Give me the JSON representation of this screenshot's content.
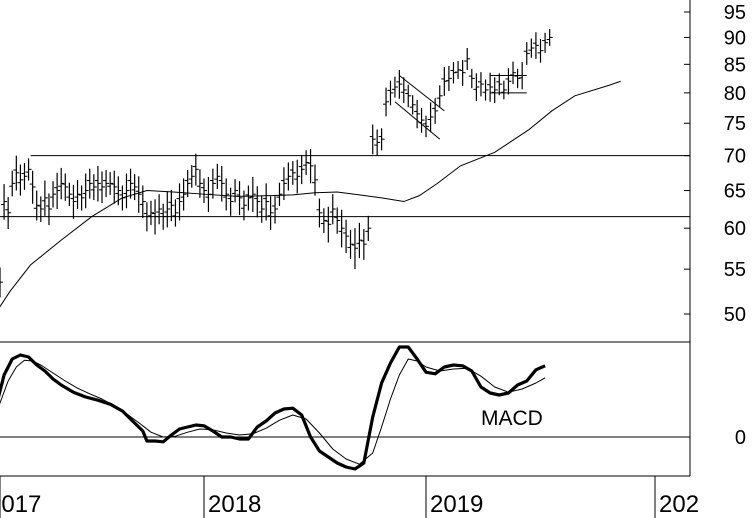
{
  "chart_data": [
    {
      "type": "ohlc",
      "title": "",
      "x_ticks": [
        "2017",
        "2018",
        "2019",
        "202"
      ],
      "y_ticks": [
        95,
        90,
        85,
        80,
        75,
        70,
        65,
        60,
        55,
        50
      ],
      "ylim": [
        46,
        97
      ],
      "grid": false,
      "legend": "none",
      "horizontal_lines": [
        70,
        61.5
      ],
      "moving_average": [
        [
          2016.92,
          49.5
        ],
        [
          2016.97,
          49.8
        ],
        [
          2017.05,
          52.5
        ],
        [
          2017.15,
          55.5
        ],
        [
          2017.3,
          58.5
        ],
        [
          2017.45,
          61.5
        ],
        [
          2017.6,
          64.0
        ],
        [
          2017.72,
          65.0
        ],
        [
          2017.85,
          64.8
        ],
        [
          2018.0,
          64.5
        ],
        [
          2018.15,
          64.2
        ],
        [
          2018.3,
          64.3
        ],
        [
          2018.4,
          64.4
        ],
        [
          2018.5,
          64.7
        ],
        [
          2018.6,
          64.8
        ],
        [
          2018.7,
          64.4
        ],
        [
          2018.8,
          64.0
        ],
        [
          2018.9,
          63.5
        ],
        [
          2018.97,
          64.3
        ],
        [
          2019.05,
          66.0
        ],
        [
          2019.15,
          68.5
        ],
        [
          2019.3,
          70.5
        ],
        [
          2019.45,
          74.0
        ],
        [
          2019.55,
          77.0
        ],
        [
          2019.65,
          79.5
        ],
        [
          2019.8,
          81.3
        ],
        [
          2019.85,
          82.0
        ]
      ],
      "price": [
        [
          2016.93,
          54.0
        ],
        [
          2016.95,
          52.0
        ],
        [
          2016.98,
          52.5
        ],
        [
          2017.0,
          53.5
        ],
        [
          2017.02,
          63.5
        ],
        [
          2017.04,
          62.0
        ],
        [
          2017.06,
          66.0
        ],
        [
          2017.08,
          67.5
        ],
        [
          2017.1,
          66.5
        ],
        [
          2017.12,
          67.0
        ],
        [
          2017.14,
          68.0
        ],
        [
          2017.16,
          65.5
        ],
        [
          2017.18,
          63.0
        ],
        [
          2017.2,
          62.5
        ],
        [
          2017.22,
          64.0
        ],
        [
          2017.24,
          62.5
        ],
        [
          2017.26,
          64.5
        ],
        [
          2017.28,
          65.0
        ],
        [
          2017.3,
          66.0
        ],
        [
          2017.32,
          65.5
        ],
        [
          2017.34,
          64.5
        ],
        [
          2017.36,
          63.5
        ],
        [
          2017.38,
          64.5
        ],
        [
          2017.4,
          64.0
        ],
        [
          2017.42,
          65.0
        ],
        [
          2017.44,
          66.0
        ],
        [
          2017.46,
          65.5
        ],
        [
          2017.48,
          66.0
        ],
        [
          2017.5,
          65.5
        ],
        [
          2017.52,
          66.0
        ],
        [
          2017.54,
          66.0
        ],
        [
          2017.56,
          65.5
        ],
        [
          2017.58,
          65.0
        ],
        [
          2017.6,
          64.0
        ],
        [
          2017.62,
          65.0
        ],
        [
          2017.64,
          66.0
        ],
        [
          2017.66,
          65.5
        ],
        [
          2017.68,
          64.5
        ],
        [
          2017.7,
          63.5
        ],
        [
          2017.72,
          61.5
        ],
        [
          2017.74,
          62.0
        ],
        [
          2017.76,
          61.5
        ],
        [
          2017.78,
          62.5
        ],
        [
          2017.8,
          61.5
        ],
        [
          2017.82,
          62.5
        ],
        [
          2017.84,
          63.0
        ],
        [
          2017.86,
          62.0
        ],
        [
          2017.88,
          63.5
        ],
        [
          2017.9,
          64.5
        ],
        [
          2017.92,
          66.0
        ],
        [
          2017.94,
          67.0
        ],
        [
          2017.96,
          68.0
        ],
        [
          2017.98,
          66.0
        ],
        [
          2018.0,
          65.0
        ],
        [
          2018.02,
          64.5
        ],
        [
          2018.04,
          66.0
        ],
        [
          2018.06,
          67.0
        ],
        [
          2018.08,
          66.0
        ],
        [
          2018.1,
          64.5
        ],
        [
          2018.12,
          63.5
        ],
        [
          2018.14,
          65.0
        ],
        [
          2018.16,
          64.0
        ],
        [
          2018.18,
          63.0
        ],
        [
          2018.2,
          64.0
        ],
        [
          2018.22,
          64.5
        ],
        [
          2018.24,
          63.5
        ],
        [
          2018.26,
          62.5
        ],
        [
          2018.28,
          63.5
        ],
        [
          2018.3,
          62.0
        ],
        [
          2018.32,
          62.5
        ],
        [
          2018.34,
          64.5
        ],
        [
          2018.36,
          66.0
        ],
        [
          2018.38,
          67.0
        ],
        [
          2018.4,
          67.5
        ],
        [
          2018.42,
          67.0
        ],
        [
          2018.44,
          68.0
        ],
        [
          2018.46,
          69.0
        ],
        [
          2018.48,
          68.5
        ],
        [
          2018.5,
          66.5
        ],
        [
          2018.52,
          62.0
        ],
        [
          2018.54,
          61.0
        ],
        [
          2018.56,
          60.5
        ],
        [
          2018.58,
          62.5
        ],
        [
          2018.6,
          61.0
        ],
        [
          2018.62,
          60.0
        ],
        [
          2018.64,
          59.0
        ],
        [
          2018.66,
          58.0
        ],
        [
          2018.68,
          57.5
        ],
        [
          2018.7,
          58.5
        ],
        [
          2018.72,
          58.0
        ],
        [
          2018.74,
          60.0
        ],
        [
          2018.76,
          72.5
        ],
        [
          2018.78,
          72.0
        ],
        [
          2018.8,
          72.5
        ],
        [
          2018.82,
          78.5
        ],
        [
          2018.84,
          80.0
        ],
        [
          2018.86,
          81.0
        ],
        [
          2018.88,
          81.5
        ],
        [
          2018.9,
          80.5
        ],
        [
          2018.92,
          79.5
        ],
        [
          2018.94,
          78.0
        ],
        [
          2018.96,
          76.5
        ],
        [
          2018.98,
          75.5
        ],
        [
          2019.0,
          74.5
        ],
        [
          2019.02,
          76.0
        ],
        [
          2019.04,
          77.0
        ],
        [
          2019.06,
          79.5
        ],
        [
          2019.08,
          82.0
        ],
        [
          2019.1,
          82.5
        ],
        [
          2019.12,
          83.5
        ],
        [
          2019.14,
          84.0
        ],
        [
          2019.16,
          83.5
        ],
        [
          2019.18,
          86.0
        ],
        [
          2019.2,
          82.5
        ],
        [
          2019.22,
          81.0
        ],
        [
          2019.24,
          81.5
        ],
        [
          2019.26,
          80.5
        ],
        [
          2019.28,
          81.0
        ],
        [
          2019.3,
          80.5
        ],
        [
          2019.32,
          81.5
        ],
        [
          2019.34,
          80.5
        ],
        [
          2019.36,
          82.0
        ],
        [
          2019.38,
          83.5
        ],
        [
          2019.4,
          82.5
        ],
        [
          2019.42,
          83.0
        ],
        [
          2019.44,
          87.0
        ],
        [
          2019.46,
          88.0
        ],
        [
          2019.48,
          88.5
        ],
        [
          2019.5,
          87.5
        ],
        [
          2019.52,
          89.0
        ],
        [
          2019.54,
          90.0
        ]
      ],
      "annotations": [
        {
          "type": "channel",
          "from": [
            2018.86,
            78.5
          ],
          "to": [
            2019.06,
            72.5
          ]
        },
        {
          "type": "channel",
          "from": [
            2018.88,
            83.0
          ],
          "to": [
            2019.08,
            77.0
          ]
        },
        {
          "type": "rectangle",
          "from": [
            2019.28,
            83.0
          ],
          "to": [
            2019.44,
            80.0
          ]
        }
      ]
    },
    {
      "type": "line",
      "title": "",
      "label": "MACD",
      "y_ticks": [
        0
      ],
      "ylim": [
        -1.1,
        2.6
      ],
      "grid": false,
      "legend": "none",
      "zero_line": true,
      "series": [
        {
          "style": "thick",
          "points": [
            [
              2016.92,
              0.45
            ],
            [
              2016.95,
              0.45
            ],
            [
              2016.98,
              0.75
            ],
            [
              2017.02,
              1.55
            ],
            [
              2017.06,
              1.95
            ],
            [
              2017.1,
              2.05
            ],
            [
              2017.14,
              2.0
            ],
            [
              2017.18,
              1.8
            ],
            [
              2017.22,
              1.65
            ],
            [
              2017.26,
              1.45
            ],
            [
              2017.3,
              1.3
            ],
            [
              2017.36,
              1.12
            ],
            [
              2017.42,
              1.0
            ],
            [
              2017.48,
              0.92
            ],
            [
              2017.54,
              0.82
            ],
            [
              2017.6,
              0.65
            ],
            [
              2017.66,
              0.35
            ],
            [
              2017.7,
              0.15
            ],
            [
              2017.72,
              -0.1
            ],
            [
              2017.76,
              -0.1
            ],
            [
              2017.8,
              -0.12
            ],
            [
              2017.84,
              0.05
            ],
            [
              2017.88,
              0.2
            ],
            [
              2017.92,
              0.25
            ],
            [
              2017.96,
              0.3
            ],
            [
              2018.0,
              0.28
            ],
            [
              2018.04,
              0.15
            ],
            [
              2018.08,
              0.0
            ],
            [
              2018.12,
              0.0
            ],
            [
              2018.16,
              -0.05
            ],
            [
              2018.2,
              -0.05
            ],
            [
              2018.24,
              0.25
            ],
            [
              2018.28,
              0.4
            ],
            [
              2018.32,
              0.6
            ],
            [
              2018.36,
              0.7
            ],
            [
              2018.4,
              0.72
            ],
            [
              2018.44,
              0.55
            ],
            [
              2018.48,
              0.0
            ],
            [
              2018.52,
              -0.35
            ],
            [
              2018.56,
              -0.5
            ],
            [
              2018.6,
              -0.65
            ],
            [
              2018.64,
              -0.75
            ],
            [
              2018.68,
              -0.8
            ],
            [
              2018.72,
              -0.65
            ],
            [
              2018.76,
              0.5
            ],
            [
              2018.8,
              1.35
            ],
            [
              2018.84,
              1.85
            ],
            [
              2018.88,
              2.25
            ],
            [
              2018.92,
              2.25
            ],
            [
              2018.96,
              1.95
            ],
            [
              2019.0,
              1.62
            ],
            [
              2019.04,
              1.58
            ],
            [
              2019.08,
              1.75
            ],
            [
              2019.12,
              1.8
            ],
            [
              2019.16,
              1.78
            ],
            [
              2019.2,
              1.65
            ],
            [
              2019.24,
              1.25
            ],
            [
              2019.28,
              1.1
            ],
            [
              2019.32,
              1.05
            ],
            [
              2019.36,
              1.1
            ],
            [
              2019.4,
              1.3
            ],
            [
              2019.44,
              1.4
            ],
            [
              2019.48,
              1.68
            ],
            [
              2019.52,
              1.78
            ]
          ]
        },
        {
          "style": "thin",
          "points": [
            [
              2016.92,
              0.2
            ],
            [
              2016.96,
              0.4
            ],
            [
              2017.0,
              0.85
            ],
            [
              2017.04,
              1.4
            ],
            [
              2017.08,
              1.75
            ],
            [
              2017.12,
              1.92
            ],
            [
              2017.16,
              1.9
            ],
            [
              2017.2,
              1.8
            ],
            [
              2017.26,
              1.6
            ],
            [
              2017.32,
              1.4
            ],
            [
              2017.38,
              1.22
            ],
            [
              2017.44,
              1.08
            ],
            [
              2017.5,
              0.95
            ],
            [
              2017.56,
              0.78
            ],
            [
              2017.62,
              0.58
            ],
            [
              2017.68,
              0.36
            ],
            [
              2017.74,
              0.12
            ],
            [
              2017.8,
              0.0
            ],
            [
              2017.86,
              0.02
            ],
            [
              2017.92,
              0.12
            ],
            [
              2017.98,
              0.2
            ],
            [
              2018.04,
              0.18
            ],
            [
              2018.1,
              0.1
            ],
            [
              2018.16,
              0.05
            ],
            [
              2018.22,
              0.08
            ],
            [
              2018.28,
              0.22
            ],
            [
              2018.34,
              0.42
            ],
            [
              2018.4,
              0.55
            ],
            [
              2018.46,
              0.45
            ],
            [
              2018.52,
              0.1
            ],
            [
              2018.58,
              -0.3
            ],
            [
              2018.64,
              -0.55
            ],
            [
              2018.7,
              -0.68
            ],
            [
              2018.76,
              -0.4
            ],
            [
              2018.8,
              0.25
            ],
            [
              2018.84,
              0.95
            ],
            [
              2018.88,
              1.55
            ],
            [
              2018.92,
              1.95
            ],
            [
              2018.96,
              1.9
            ],
            [
              2019.0,
              1.75
            ],
            [
              2019.06,
              1.65
            ],
            [
              2019.12,
              1.7
            ],
            [
              2019.18,
              1.72
            ],
            [
              2019.24,
              1.52
            ],
            [
              2019.3,
              1.25
            ],
            [
              2019.36,
              1.12
            ],
            [
              2019.42,
              1.2
            ],
            [
              2019.48,
              1.35
            ],
            [
              2019.52,
              1.48
            ]
          ]
        }
      ]
    }
  ]
}
